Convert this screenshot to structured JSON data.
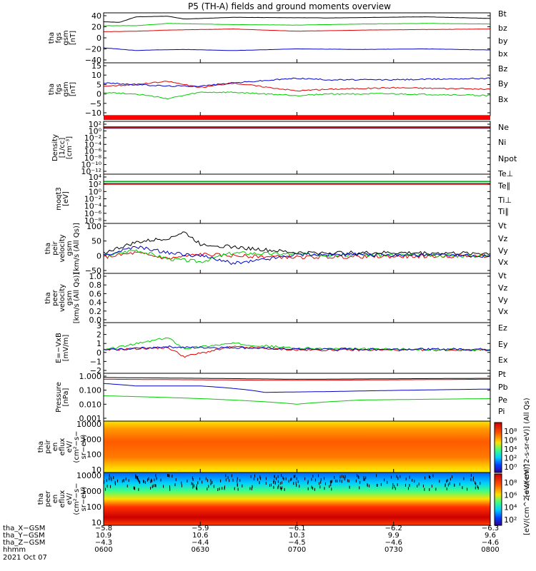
{
  "title": "P5 (TH-A) fields and ground moments overview",
  "colors": {
    "black": "#000000",
    "red": "#e00000",
    "green": "#00cc00",
    "blue": "#0000cc"
  },
  "chart_data": [
    {
      "type": "line",
      "panel": "fgs-gsm-magnitude",
      "ylabel_lines": [
        "tha",
        "fgs",
        "gsm",
        "[nT]"
      ],
      "yticks": [
        "40",
        "20",
        "0",
        "−20",
        "−40"
      ],
      "ylim": [
        -40,
        40
      ],
      "series": [
        {
          "name": "Bt",
          "color": "black",
          "x": [
            0,
            5,
            10,
            20,
            25,
            40,
            70,
            100,
            120
          ],
          "y": [
            29,
            28,
            38,
            39,
            34,
            37,
            36,
            38,
            35
          ]
        },
        {
          "name": "bz",
          "color": "red",
          "x": [
            0,
            10,
            20,
            40,
            60,
            80,
            100,
            120
          ],
          "y": [
            11,
            12,
            14,
            16,
            12,
            14,
            15,
            16
          ]
        },
        {
          "name": "by",
          "color": "green",
          "x": [
            0,
            10,
            20,
            40,
            60,
            80,
            100,
            120
          ],
          "y": [
            22,
            22,
            26,
            24,
            23,
            25,
            26,
            25
          ]
        },
        {
          "name": "bx",
          "color": "blue",
          "x": [
            0,
            10,
            15,
            25,
            40,
            60,
            80,
            100,
            120
          ],
          "y": [
            -18,
            -23,
            -22,
            -21,
            -23,
            -20,
            -21,
            -20,
            -22
          ]
        }
      ]
    },
    {
      "type": "line",
      "panel": "fgs-gsm-components",
      "ylabel_lines": [
        "tha",
        "fgs",
        "gsm",
        "[nT]"
      ],
      "yticks": [
        "15",
        "10",
        "5",
        "0",
        "−5",
        "−10"
      ],
      "ylim": [
        -15,
        15
      ],
      "series": [
        {
          "name": "Bz",
          "color": "red",
          "x": [
            0,
            10,
            20,
            30,
            40,
            60,
            70,
            90,
            120
          ],
          "y": [
            2,
            3,
            5,
            1,
            4,
            -1,
            0,
            1,
            0
          ]
        },
        {
          "name": "By",
          "color": "green",
          "x": [
            0,
            10,
            20,
            30,
            40,
            60,
            70,
            90,
            120
          ],
          "y": [
            -2,
            -3,
            -6,
            -2,
            -2,
            -4,
            -3,
            -3,
            -4
          ]
        },
        {
          "name": "Bx",
          "color": "blue",
          "x": [
            0,
            10,
            20,
            30,
            40,
            60,
            70,
            90,
            120
          ],
          "y": [
            4,
            3,
            2,
            2,
            4,
            7,
            6,
            6,
            7
          ]
        }
      ]
    },
    {
      "type": "line",
      "panel": "density",
      "ylabel_lines": [
        "Density",
        "[1/cc]",
        "[cm⁻³]"
      ],
      "yticks": [
        "10²",
        "10⁰",
        "10⁻²",
        "10⁻⁴",
        "10⁻⁶",
        "10⁻⁸",
        "10⁻¹⁰",
        "10⁻¹²"
      ],
      "ylim": [
        -12,
        2
      ],
      "log": true,
      "series": [
        {
          "name": "Ne",
          "color": "red",
          "x": [
            0,
            120
          ],
          "y": [
            1,
            1
          ]
        },
        {
          "name": "Ni",
          "color": "black",
          "x": [
            0,
            120
          ],
          "y": [
            1.2,
            1.2
          ]
        },
        {
          "name": "Npot",
          "color": "blue",
          "x": [
            0,
            120
          ],
          "y": [
            0.8,
            0.8
          ]
        }
      ]
    },
    {
      "type": "line",
      "panel": "temperature",
      "ylabel_lines": [
        "moqt3",
        "[eV]"
      ],
      "yticks": [
        "10⁴",
        "10²",
        "10⁰",
        "10⁻²",
        "10⁻⁴",
        "10⁻⁶",
        "10⁻⁸"
      ],
      "ylim": [
        -8,
        4
      ],
      "log": true,
      "series": [
        {
          "name": "Te⊥",
          "color": "red",
          "x": [
            0,
            120
          ],
          "y": [
            2,
            2
          ]
        },
        {
          "name": "Te∥",
          "color": "black",
          "x": [
            0,
            120
          ],
          "y": [
            2.2,
            2.2
          ]
        },
        {
          "name": "Ti⊥",
          "color": "blue",
          "x": [
            0,
            120
          ],
          "y": [
            2.8,
            2.8
          ]
        },
        {
          "name": "Ti∥",
          "color": "green",
          "x": [
            0,
            120
          ],
          "y": [
            2.7,
            2.7
          ]
        }
      ]
    },
    {
      "type": "line",
      "panel": "peir-velocity",
      "ylabel_lines": [
        "tha",
        "peir",
        "velocity",
        "gsm",
        "[km/s (All Qs)]"
      ],
      "yticks": [
        "100",
        "50",
        "0",
        "−50"
      ],
      "ylim": [
        -50,
        100
      ],
      "series": [
        {
          "name": "Vt",
          "color": "black",
          "x": [
            0,
            10,
            20,
            25,
            30,
            40,
            50,
            60,
            90,
            120
          ],
          "y": [
            10,
            45,
            60,
            80,
            40,
            30,
            20,
            10,
            10,
            8
          ]
        },
        {
          "name": "Vz",
          "color": "red",
          "x": [
            0,
            10,
            20,
            30,
            40,
            60,
            120
          ],
          "y": [
            -5,
            10,
            -10,
            5,
            0,
            -5,
            0
          ]
        },
        {
          "name": "Vy",
          "color": "green",
          "x": [
            0,
            10,
            20,
            30,
            40,
            60,
            120
          ],
          "y": [
            0,
            20,
            -10,
            -20,
            10,
            5,
            0
          ]
        },
        {
          "name": "Vx",
          "color": "blue",
          "x": [
            0,
            10,
            20,
            30,
            40,
            45,
            60,
            120
          ],
          "y": [
            0,
            30,
            10,
            0,
            -25,
            -20,
            5,
            0
          ]
        }
      ]
    },
    {
      "type": "line",
      "panel": "peer-velocity",
      "ylabel_lines": [
        "tha",
        "peer",
        "velocity",
        "gsm",
        "[km/s (All Qs)]"
      ],
      "yticks": [
        "1.0",
        "0.8",
        "0.6",
        "0.4",
        "0.2",
        "0.0"
      ],
      "ylim": [
        0,
        1
      ],
      "series": [
        {
          "name": "Vt",
          "color": "black",
          "x": [],
          "y": []
        },
        {
          "name": "Vz",
          "color": "red",
          "x": [],
          "y": []
        },
        {
          "name": "Vy",
          "color": "green",
          "x": [],
          "y": []
        },
        {
          "name": "Vx",
          "color": "blue",
          "x": [],
          "y": []
        }
      ]
    },
    {
      "type": "line",
      "panel": "e-field",
      "ylabel_lines": [
        "E=−VxB",
        "[mV/m]"
      ],
      "yticks": [
        "3",
        "2",
        "1",
        "0",
        "−1",
        "−2"
      ],
      "ylim": [
        -2.5,
        3
      ],
      "series": [
        {
          "name": "Ez",
          "color": "red",
          "x": [
            0,
            20,
            25,
            40,
            60,
            120
          ],
          "y": [
            0,
            0.3,
            -0.8,
            0.4,
            0,
            0
          ]
        },
        {
          "name": "Ey",
          "color": "green",
          "x": [
            0,
            20,
            25,
            40,
            60,
            120
          ],
          "y": [
            0,
            1.5,
            0.2,
            0.8,
            0.2,
            0
          ]
        },
        {
          "name": "Ex",
          "color": "blue",
          "x": [
            0,
            20,
            25,
            40,
            60,
            120
          ],
          "y": [
            0,
            0.4,
            0.3,
            0.3,
            0.1,
            0.1
          ]
        }
      ]
    },
    {
      "type": "line",
      "panel": "pressure",
      "ylabel_lines": [
        "Pressure",
        "[nPa]"
      ],
      "yticks": [
        "1.000",
        "0.100",
        "0.010",
        "0.001"
      ],
      "ylim": [
        0.001,
        1.0
      ],
      "log": true,
      "series": [
        {
          "name": "Pt",
          "color": "black",
          "x": [
            0,
            60,
            120
          ],
          "y": [
            0.8,
            0.6,
            0.7
          ]
        },
        {
          "name": "Pb",
          "color": "red",
          "x": [
            0,
            60,
            120
          ],
          "y": [
            0.6,
            0.5,
            0.6
          ]
        },
        {
          "name": "Pe",
          "color": "green",
          "x": [
            0,
            20,
            40,
            60,
            80,
            120
          ],
          "y": [
            0.04,
            0.03,
            0.02,
            0.01,
            0.02,
            0.025
          ]
        },
        {
          "name": "Pi",
          "color": "blue",
          "x": [
            0,
            10,
            30,
            50,
            70,
            120
          ],
          "y": [
            0.3,
            0.2,
            0.2,
            0.07,
            0.08,
            0.12
          ]
        }
      ]
    },
    {
      "type": "heatmap",
      "panel": "peir-eflux",
      "ylabel_lines": [
        "tha",
        "peir",
        "en",
        "eflux",
        "eV/",
        "(cm²−s−",
        "sr−eV)"
      ],
      "yticks": [
        "10000",
        "1000",
        "100",
        "10"
      ],
      "ylim": [
        10,
        20000
      ],
      "log": true
    },
    {
      "type": "heatmap",
      "panel": "peer-eflux",
      "ylabel_lines": [
        "tha",
        "peer",
        "en",
        "eflux",
        "eV/",
        "(cm²−s−",
        "sr−eV)"
      ],
      "yticks": [
        "10000",
        "1000",
        "100",
        "10"
      ],
      "ylim": [
        10,
        20000
      ],
      "log": true
    }
  ],
  "colorbar_top": {
    "ticks": [
      "10⁸",
      "10⁶",
      "10⁴",
      "10²",
      "10⁰"
    ],
    "label": "[eV/(cm^2-s-sr-eV)] (All Qs)"
  },
  "colorbar_bottom": {
    "ticks": [
      "10⁸",
      "10⁶",
      "10⁴",
      "10²"
    ],
    "label": "[eV/(cm^2-s-sr-eV)]"
  },
  "ephemeris": {
    "row_labels": [
      "tha_X−GSM",
      "tha_Y−GSM",
      "tha_Z−GSM",
      "hhmm",
      "2021 Oct 07"
    ],
    "columns": [
      {
        "x": "−5.8",
        "y": "10.9",
        "z": "−4.3",
        "t": "0600"
      },
      {
        "x": "−5.9",
        "y": "10.6",
        "z": "−4.4",
        "t": "0630"
      },
      {
        "x": "−6.1",
        "y": "10.3",
        "z": "−4.5",
        "t": "0700"
      },
      {
        "x": "−6.2",
        "y": "9.9",
        "z": "−4.6",
        "t": "0730"
      },
      {
        "x": "−6.3",
        "y": "9.6",
        "z": "−4.6",
        "t": "0800"
      }
    ]
  }
}
